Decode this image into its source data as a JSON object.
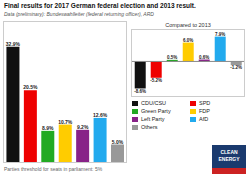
{
  "chart_data": [
    {
      "type": "bar",
      "title": "Final results for 2017 German federal election and 2013 result.",
      "subtitle": "Data (preliminary): Bundeswahlleiter (federal returning officer), ARD",
      "annotations": [
        "Parties threshold for seats in parliament: 5%",
        "CLEAN",
        "ENERGY"
      ],
      "categories": [
        "CDU/CSU",
        "SPD",
        "Green Party",
        "FDP",
        "Left Party",
        "AfD",
        "Others"
      ],
      "values": [
        32.9,
        20.5,
        8.9,
        10.7,
        9.2,
        12.6,
        5.0
      ],
      "value_labels": [
        "32.9%",
        "20.5%",
        "8.9%",
        "10.7%",
        "9.2%",
        "12.6%",
        "5.0%"
      ],
      "colors": [
        "#111111",
        "#EE0000",
        "#22AA22",
        "#FFCC00",
        "#882288",
        "#22AAEE",
        "#999999"
      ],
      "ylim": [
        0,
        40
      ],
      "tick_labels": false,
      "data_labels": true,
      "legend": "right"
    },
    {
      "type": "bar",
      "title": "Compared to 2013",
      "categories": [
        "CDU/CSU",
        "SPD",
        "Green Party",
        "FDP",
        "Left Party",
        "AfD",
        "Others"
      ],
      "values": [
        -8.6,
        -5.2,
        0.5,
        6.0,
        0.6,
        7.9,
        -1.2
      ],
      "value_labels": [
        "-8.6%",
        "-5.2%",
        "0.5%",
        "6.0%",
        "0.6%",
        "7.9%",
        "-1.2%"
      ],
      "colors": [
        "#111111",
        "#EE0000",
        "#22AA22",
        "#FFCC00",
        "#882288",
        "#22AAEE",
        "#999999"
      ],
      "ylim": [
        -11,
        10
      ],
      "tick_labels": false,
      "data_labels": true
    }
  ]
}
